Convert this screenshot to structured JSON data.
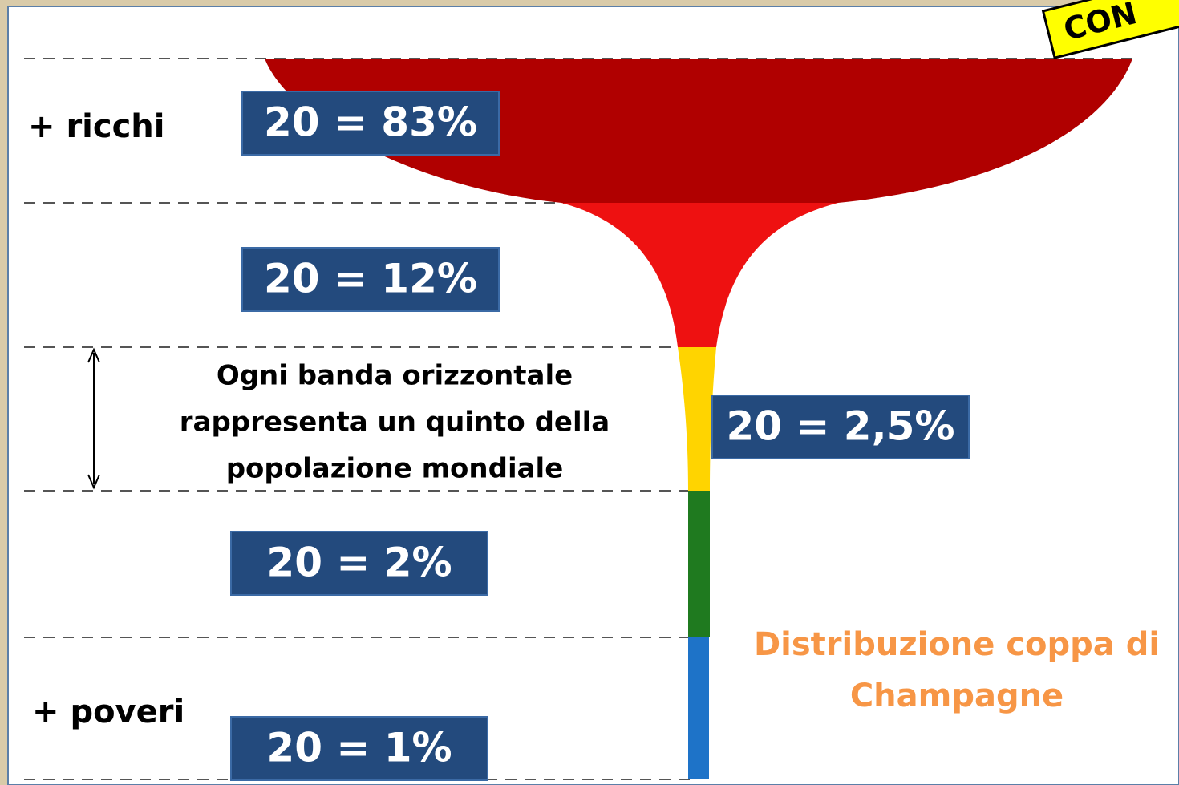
{
  "sticker": "CON",
  "labels": {
    "rich": "+ ricchi",
    "poor": "+ poveri"
  },
  "bands": [
    {
      "label": "20 = 83%"
    },
    {
      "label": "20 = 12%"
    },
    {
      "label": "20 = 2,5%"
    },
    {
      "label": "20 = 2%"
    },
    {
      "label": "20 = 1%"
    }
  ],
  "note": [
    "Ogni banda orizzontale",
    "rappresenta un quinto della",
    "popolazione mondiale"
  ],
  "caption": [
    "Distribuzione coppa di",
    "Champagne"
  ]
}
